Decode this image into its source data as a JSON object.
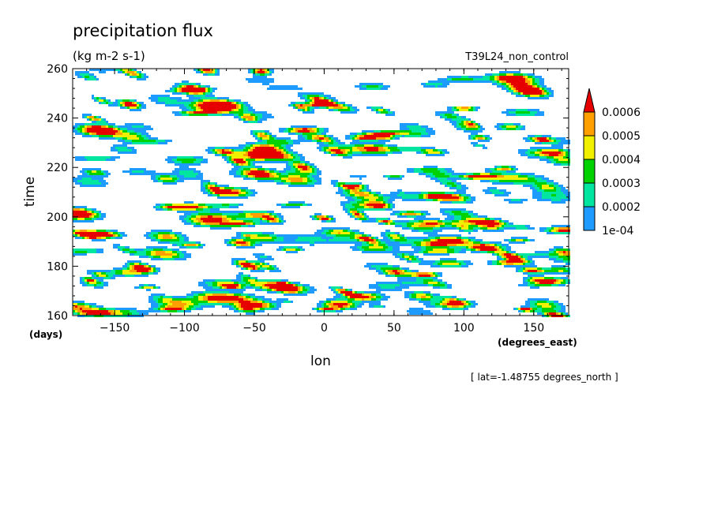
{
  "chart_data": {
    "type": "heatmap",
    "title": "precipitation flux",
    "units": "(kg m-2 s-1)",
    "run_label": "T39L24_non_control",
    "xlabel": "lon",
    "ylabel": "time",
    "x_units": "(degrees_east)",
    "y_units": "(days)",
    "footnote": "[ lat=-1.48755 degrees_north ]",
    "xlim": [
      -180,
      175
    ],
    "ylim": [
      160,
      260
    ],
    "x_ticks": [
      {
        "value": -150,
        "label": "−150"
      },
      {
        "value": -100,
        "label": "−100"
      },
      {
        "value": -50,
        "label": "−50"
      },
      {
        "value": 0,
        "label": "0"
      },
      {
        "value": 50,
        "label": "50"
      },
      {
        "value": 100,
        "label": "100"
      },
      {
        "value": 150,
        "label": "150"
      }
    ],
    "y_ticks": [
      {
        "value": 160,
        "label": "160"
      },
      {
        "value": 180,
        "label": "180"
      },
      {
        "value": 200,
        "label": "200"
      },
      {
        "value": 220,
        "label": "220"
      },
      {
        "value": 240,
        "label": "240"
      },
      {
        "value": 260,
        "label": "260"
      }
    ],
    "colorbar": {
      "levels": [
        {
          "value": 0.0001,
          "label": "1e-04"
        },
        {
          "value": 0.0002,
          "label": "0.0002"
        },
        {
          "value": 0.0003,
          "label": "0.0003"
        },
        {
          "value": 0.0004,
          "label": "0.0004"
        },
        {
          "value": 0.0005,
          "label": "0.0005"
        },
        {
          "value": 0.0006,
          "label": "0.0006"
        }
      ],
      "colors": [
        "#1e9bff",
        "#00e6a0",
        "#00d200",
        "#f0f000",
        "#ffa000",
        "#e60000"
      ],
      "extend": "max"
    },
    "field_seed": 7,
    "grid": false
  }
}
